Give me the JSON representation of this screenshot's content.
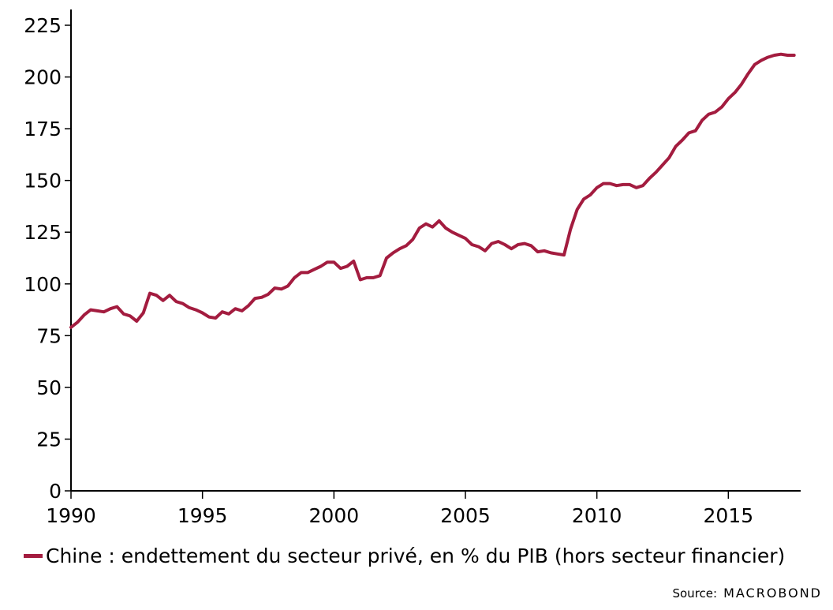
{
  "chart_data": {
    "type": "line",
    "xlim": [
      1990,
      2017.75
    ],
    "ylim": [
      0,
      225
    ],
    "x_ticks": [
      1990,
      1995,
      2000,
      2005,
      2010,
      2015
    ],
    "x_tick_labels": [
      "1990",
      "1995",
      "2000",
      "2005",
      "2010",
      "2015"
    ],
    "y_ticks": [
      0,
      25,
      50,
      75,
      100,
      125,
      150,
      175,
      200,
      225
    ],
    "y_tick_labels": [
      "0",
      "25",
      "50",
      "75",
      "100",
      "125",
      "150",
      "175",
      "200",
      "225"
    ],
    "grid": false,
    "legend_position": "bottom-left",
    "series": [
      {
        "name": "Chine : endettement du secteur privé, en % du PIB (hors secteur financier)",
        "color": "#a31c3f",
        "points": [
          [
            1990.0,
            79
          ],
          [
            1990.25,
            81.5
          ],
          [
            1990.5,
            85
          ],
          [
            1990.75,
            87.5
          ],
          [
            1991.0,
            87
          ],
          [
            1991.25,
            86.5
          ],
          [
            1991.5,
            88
          ],
          [
            1991.75,
            89
          ],
          [
            1992.0,
            85.5
          ],
          [
            1992.25,
            84.5
          ],
          [
            1992.5,
            82
          ],
          [
            1992.75,
            86
          ],
          [
            1993.0,
            95.5
          ],
          [
            1993.25,
            94.5
          ],
          [
            1993.5,
            92
          ],
          [
            1993.75,
            94.5
          ],
          [
            1994.0,
            91.5
          ],
          [
            1994.25,
            90.5
          ],
          [
            1994.5,
            88.5
          ],
          [
            1994.75,
            87.5
          ],
          [
            1995.0,
            86
          ],
          [
            1995.25,
            84
          ],
          [
            1995.5,
            83.5
          ],
          [
            1995.75,
            86.5
          ],
          [
            1996.0,
            85.5
          ],
          [
            1996.25,
            88
          ],
          [
            1996.5,
            87
          ],
          [
            1996.75,
            89.5
          ],
          [
            1997.0,
            93
          ],
          [
            1997.25,
            93.5
          ],
          [
            1997.5,
            95
          ],
          [
            1997.75,
            98
          ],
          [
            1998.0,
            97.5
          ],
          [
            1998.25,
            99
          ],
          [
            1998.5,
            103
          ],
          [
            1998.75,
            105.5
          ],
          [
            1999.0,
            105.5
          ],
          [
            1999.25,
            107
          ],
          [
            1999.5,
            108.5
          ],
          [
            1999.75,
            110.5
          ],
          [
            2000.0,
            110.5
          ],
          [
            2000.25,
            107.5
          ],
          [
            2000.5,
            108.5
          ],
          [
            2000.75,
            111
          ],
          [
            2001.0,
            102
          ],
          [
            2001.25,
            103
          ],
          [
            2001.5,
            103
          ],
          [
            2001.75,
            104
          ],
          [
            2002.0,
            112.5
          ],
          [
            2002.25,
            115
          ],
          [
            2002.5,
            117
          ],
          [
            2002.75,
            118.5
          ],
          [
            2003.0,
            121.5
          ],
          [
            2003.25,
            127
          ],
          [
            2003.5,
            129
          ],
          [
            2003.75,
            127.5
          ],
          [
            2004.0,
            130.5
          ],
          [
            2004.25,
            127
          ],
          [
            2004.5,
            125
          ],
          [
            2004.75,
            123.5
          ],
          [
            2005.0,
            122
          ],
          [
            2005.25,
            119
          ],
          [
            2005.5,
            118
          ],
          [
            2005.75,
            116
          ],
          [
            2006.0,
            119.5
          ],
          [
            2006.25,
            120.5
          ],
          [
            2006.5,
            119
          ],
          [
            2006.75,
            117
          ],
          [
            2007.0,
            119
          ],
          [
            2007.25,
            119.5
          ],
          [
            2007.5,
            118.5
          ],
          [
            2007.75,
            115.5
          ],
          [
            2008.0,
            116
          ],
          [
            2008.25,
            115
          ],
          [
            2008.5,
            114.5
          ],
          [
            2008.75,
            114
          ],
          [
            2009.0,
            126.5
          ],
          [
            2009.25,
            136
          ],
          [
            2009.5,
            141
          ],
          [
            2009.75,
            143
          ],
          [
            2010.0,
            146.5
          ],
          [
            2010.25,
            148.5
          ],
          [
            2010.5,
            148.5
          ],
          [
            2010.75,
            147.5
          ],
          [
            2011.0,
            148
          ],
          [
            2011.25,
            148
          ],
          [
            2011.5,
            146.5
          ],
          [
            2011.75,
            147.5
          ],
          [
            2012.0,
            151
          ],
          [
            2012.25,
            154
          ],
          [
            2012.5,
            157.5
          ],
          [
            2012.75,
            161
          ],
          [
            2013.0,
            166.5
          ],
          [
            2013.25,
            169.5
          ],
          [
            2013.5,
            173
          ],
          [
            2013.75,
            174
          ],
          [
            2014.0,
            179
          ],
          [
            2014.25,
            182
          ],
          [
            2014.5,
            183
          ],
          [
            2014.75,
            185.5
          ],
          [
            2015.0,
            189.5
          ],
          [
            2015.25,
            192.5
          ],
          [
            2015.5,
            196.5
          ],
          [
            2015.75,
            201.5
          ],
          [
            2016.0,
            206
          ],
          [
            2016.25,
            208
          ],
          [
            2016.5,
            209.5
          ],
          [
            2016.75,
            210.5
          ],
          [
            2017.0,
            211
          ],
          [
            2017.25,
            210.5
          ],
          [
            2017.5,
            210.5
          ]
        ]
      }
    ]
  },
  "legend": {
    "label": "Chine : endettement du secteur privé, en % du PIB (hors secteur financier)"
  },
  "source": {
    "label": "Source:",
    "brand": "MACROBOND"
  }
}
